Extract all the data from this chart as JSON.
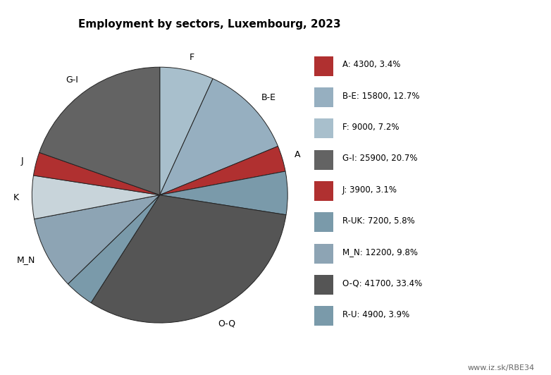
{
  "title": "Employment by sectors, Luxembourg, 2023",
  "watermark": "www.iz.sk/RBE34",
  "background_color": "#ffffff",
  "sectors_ordered": [
    "F",
    "B-E",
    "A",
    "R-UK",
    "O-Q",
    "R-U",
    "M_N",
    "K",
    "J",
    "G-I"
  ],
  "values_ordered": [
    9000,
    15800,
    4300,
    7200,
    41700,
    4900,
    12200,
    7200,
    3900,
    25900
  ],
  "colors_ordered": [
    "#a8bfcc",
    "#96afc0",
    "#b03030",
    "#7a9aaa",
    "#555555",
    "#7a9aaa",
    "#8da4b4",
    "#c8d4da",
    "#b03030",
    "#636363"
  ],
  "labels_pie": [
    "F",
    "B-E",
    "A",
    "",
    "O-Q",
    "",
    "M_N",
    "K",
    "J",
    "G-I"
  ],
  "legend_entries": [
    "A: 4300, 3.4%",
    "B-E: 15800, 12.7%",
    "F: 9000, 7.2%",
    "G-I: 25900, 20.7%",
    "J: 3900, 3.1%",
    "R-UK: 7200, 5.8%",
    "M_N: 12200, 9.8%",
    "O-Q: 41700, 33.4%",
    "R-U: 4900, 3.9%"
  ],
  "legend_colors": [
    "#b03030",
    "#96afc0",
    "#a8bfcc",
    "#636363",
    "#b03030",
    "#7a9aaa",
    "#8da4b4",
    "#555555",
    "#7a9aaa"
  ]
}
